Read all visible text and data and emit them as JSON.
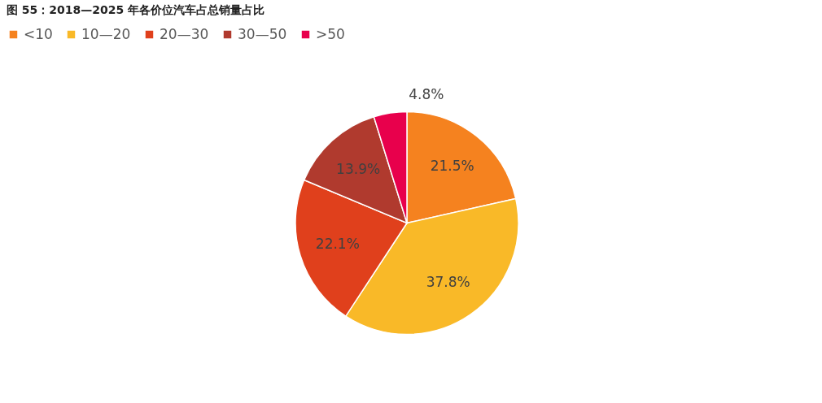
{
  "chart_data": {
    "type": "pie",
    "title": "图 55：2018—2025 年各价位汽车占总销量占比",
    "categories": [
      "<10",
      "10—20",
      "20—30",
      "30—50",
      ">50"
    ],
    "values": [
      21.5,
      37.8,
      22.1,
      13.9,
      4.8
    ],
    "colors": [
      "#f5821f",
      "#f9b928",
      "#e0401c",
      "#b03a2e",
      "#e8004c"
    ],
    "value_labels": [
      "21.5%",
      "37.8%",
      "22.1%",
      "13.9%",
      "4.8%"
    ],
    "legend": "top"
  }
}
